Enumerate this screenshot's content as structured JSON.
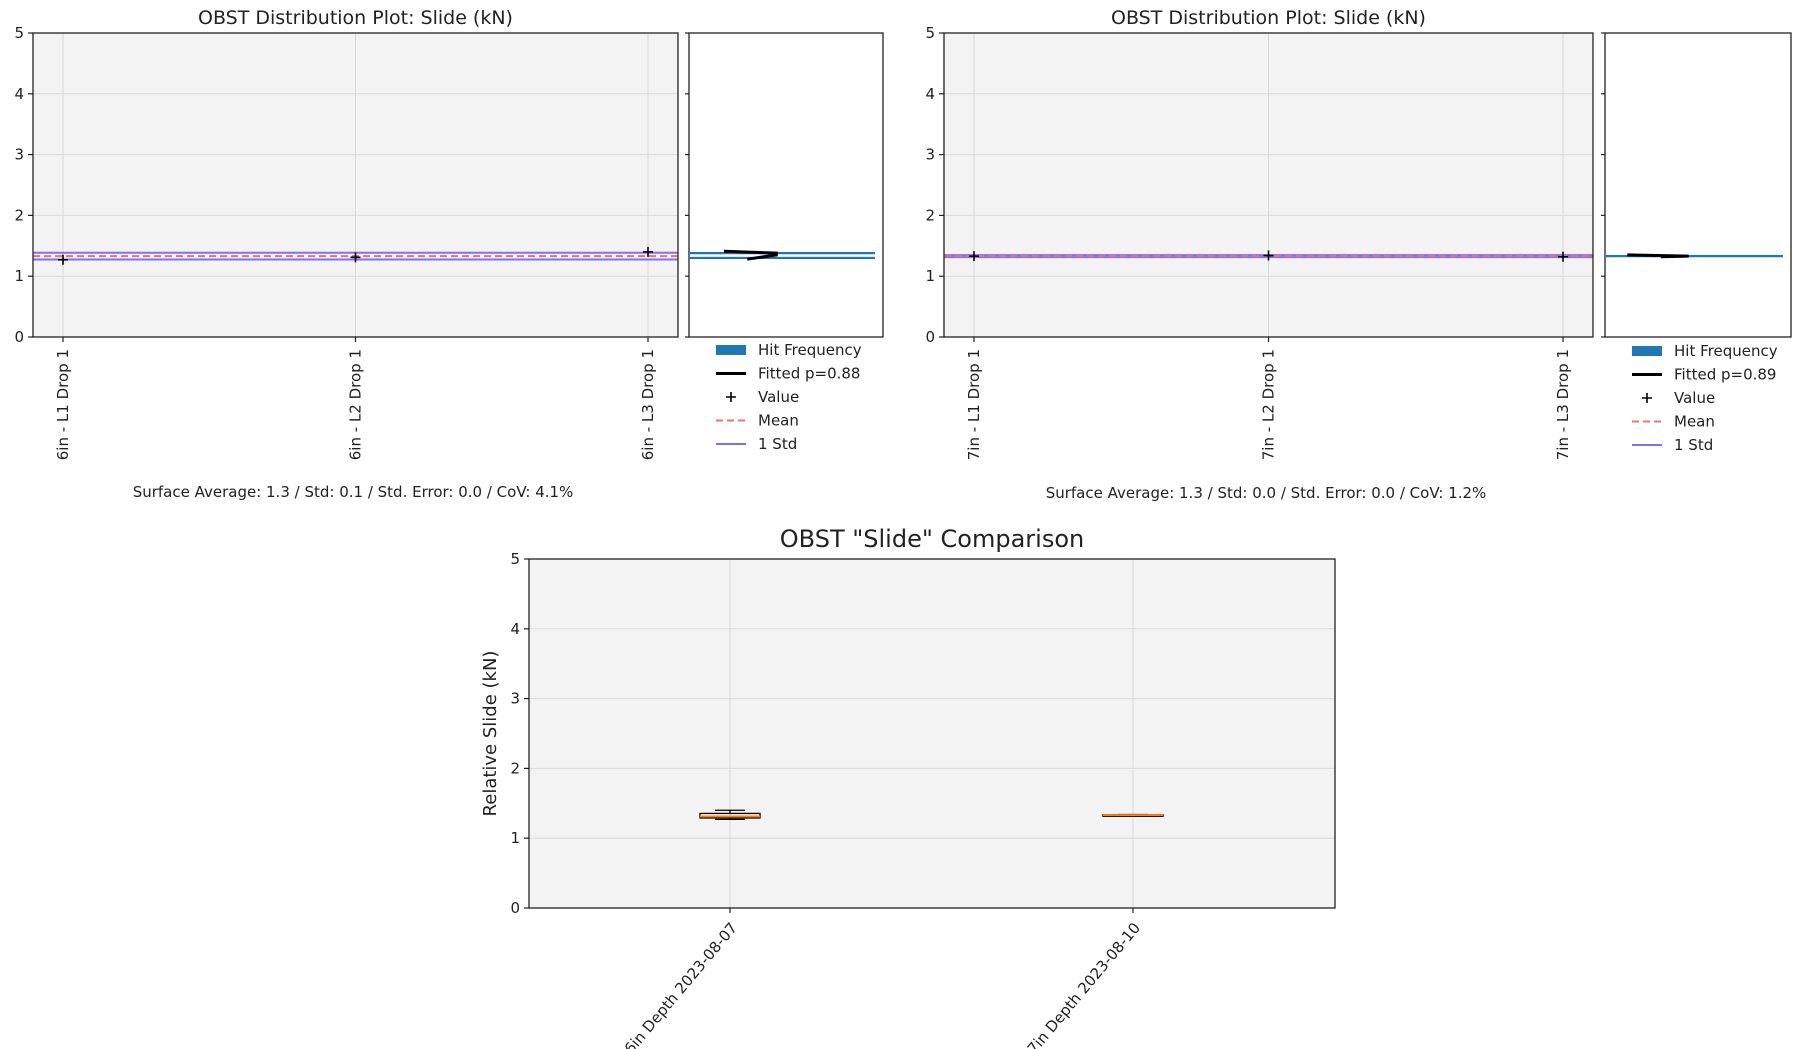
{
  "chart_data": [
    {
      "type": "scatter",
      "title": "OBST Distribution Plot: Slide (kN)",
      "categories": [
        "6in - L1 Drop 1",
        "6in - L2 Drop 1",
        "6in - L3 Drop 1"
      ],
      "values": [
        1.27,
        1.31,
        1.4
      ],
      "mean": 1.33,
      "std": 0.055,
      "ylim": [
        0,
        5
      ],
      "yticks": [
        "0",
        "1",
        "2",
        "3",
        "4",
        "5"
      ],
      "grid": true,
      "hist_bins": [
        1.3,
        1.38
      ],
      "fitted_curve": [
        [
          0.18,
          1.41
        ],
        [
          0.45,
          1.38
        ],
        [
          0.45,
          1.35
        ],
        [
          0.3,
          1.28
        ]
      ],
      "legend": [
        "Hit Frequency",
        "Fitted p=0.88",
        "Value",
        "Mean",
        "1 Std"
      ],
      "legend_position": "below-right",
      "stats": "Surface Average: 1.3 / Std: 0.1 / Std. Error: 0.0 / CoV: 4.1%"
    },
    {
      "type": "scatter",
      "title": "OBST Distribution Plot: Slide (kN)",
      "categories": [
        "7in - L1 Drop 1",
        "7in - L2 Drop 1",
        "7in - L3 Drop 1"
      ],
      "values": [
        1.33,
        1.34,
        1.32
      ],
      "mean": 1.33,
      "std": 0.016,
      "ylim": [
        0,
        5
      ],
      "yticks": [
        "0",
        "1",
        "2",
        "3",
        "4",
        "5"
      ],
      "grid": true,
      "hist_bins": [
        1.33
      ],
      "fitted_curve": [
        [
          0.12,
          1.35
        ],
        [
          0.45,
          1.33
        ],
        [
          0.3,
          1.32
        ]
      ],
      "legend": [
        "Hit Frequency",
        "Fitted p=0.89",
        "Value",
        "Mean",
        "1 Std"
      ],
      "legend_position": "below-right",
      "stats": "Surface Average: 1.3 / Std: 0.0 / Std. Error: 0.0 / CoV: 1.2%"
    },
    {
      "type": "box",
      "title": "OBST \"Slide\" Comparison",
      "ylabel": "Relative Slide (kN)",
      "categories": [
        "6in Depth 2023-08-07",
        "7in Depth 2023-08-10"
      ],
      "boxes": [
        {
          "min": 1.27,
          "q1": 1.29,
          "median": 1.31,
          "q3": 1.355,
          "max": 1.4
        },
        {
          "min": 1.32,
          "q1": 1.325,
          "median": 1.33,
          "q3": 1.335,
          "max": 1.34
        }
      ],
      "ylim": [
        0,
        5
      ],
      "yticks": [
        "0",
        "1",
        "2",
        "3",
        "4",
        "5"
      ],
      "grid": true
    }
  ],
  "colors": {
    "plot_bg": "#f3f3f3",
    "grid": "#dadada",
    "mean": "#f07070",
    "std": "#7b72f0",
    "hist": "#1f77b4",
    "fitted": "#000000",
    "box": "#000000",
    "median": "#ff7f0e"
  }
}
